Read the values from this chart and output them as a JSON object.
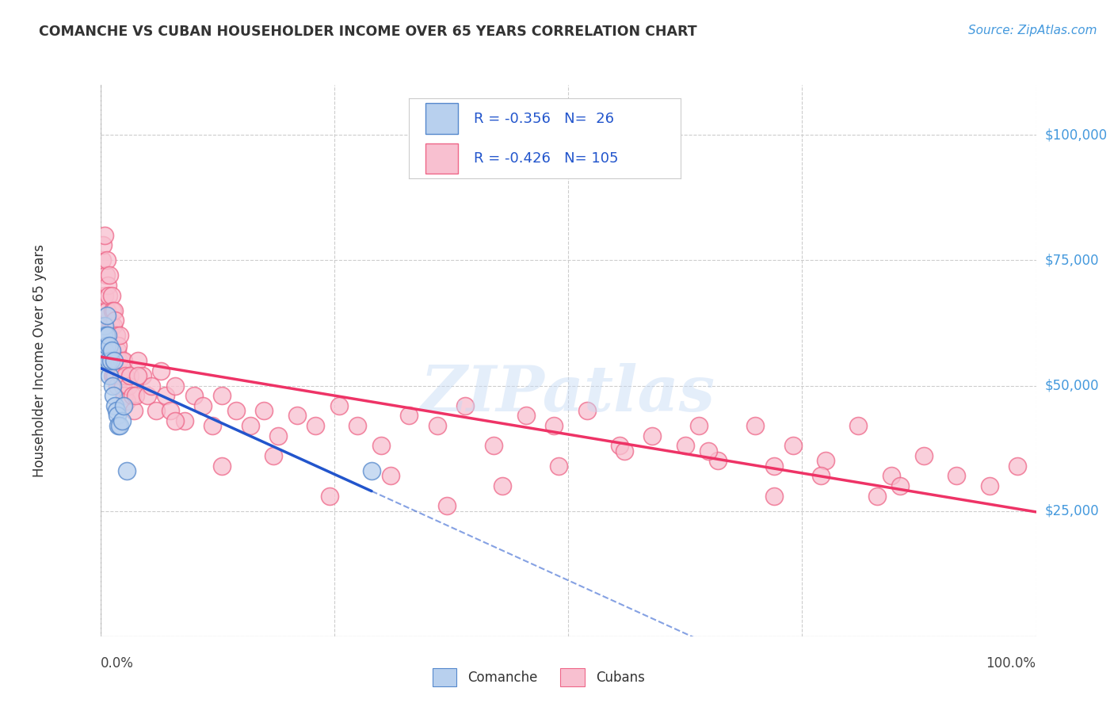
{
  "title": "COMANCHE VS CUBAN HOUSEHOLDER INCOME OVER 65 YEARS CORRELATION CHART",
  "source": "Source: ZipAtlas.com",
  "ylabel": "Householder Income Over 65 years",
  "xlim": [
    0.0,
    1.0
  ],
  "ylim": [
    0,
    110000
  ],
  "yticks": [
    0,
    25000,
    50000,
    75000,
    100000
  ],
  "background_color": "#ffffff",
  "grid_color": "#c8c8c8",
  "title_color": "#333333",
  "source_color": "#4499dd",
  "comanche_face_color": "#b8d0ee",
  "comanche_edge_color": "#5588cc",
  "comanche_line_color": "#2255cc",
  "cuban_face_color": "#f8c0d0",
  "cuban_edge_color": "#ee6688",
  "cuban_line_color": "#ee3366",
  "legend_text_color": "#2255cc",
  "R_comanche": -0.356,
  "N_comanche": 26,
  "R_cuban": -0.426,
  "N_cuban": 105,
  "comanche_x": [
    0.002,
    0.003,
    0.004,
    0.005,
    0.005,
    0.006,
    0.007,
    0.007,
    0.008,
    0.009,
    0.01,
    0.01,
    0.011,
    0.012,
    0.013,
    0.014,
    0.015,
    0.016,
    0.017,
    0.018,
    0.019,
    0.021,
    0.023,
    0.025,
    0.028,
    0.29
  ],
  "comanche_y": [
    56000,
    60000,
    60000,
    62000,
    57000,
    60000,
    64000,
    58000,
    60000,
    55000,
    58000,
    52000,
    55000,
    57000,
    50000,
    48000,
    55000,
    46000,
    45000,
    44000,
    42000,
    42000,
    43000,
    46000,
    33000,
    33000
  ],
  "cuban_x": [
    0.002,
    0.003,
    0.004,
    0.005,
    0.005,
    0.006,
    0.006,
    0.007,
    0.007,
    0.008,
    0.008,
    0.009,
    0.009,
    0.01,
    0.01,
    0.011,
    0.011,
    0.012,
    0.012,
    0.013,
    0.013,
    0.014,
    0.014,
    0.015,
    0.015,
    0.016,
    0.016,
    0.017,
    0.018,
    0.018,
    0.019,
    0.02,
    0.021,
    0.022,
    0.023,
    0.024,
    0.025,
    0.026,
    0.027,
    0.028,
    0.03,
    0.032,
    0.034,
    0.036,
    0.038,
    0.04,
    0.045,
    0.05,
    0.055,
    0.06,
    0.065,
    0.07,
    0.075,
    0.08,
    0.09,
    0.1,
    0.11,
    0.12,
    0.13,
    0.145,
    0.16,
    0.175,
    0.19,
    0.21,
    0.23,
    0.255,
    0.275,
    0.3,
    0.33,
    0.36,
    0.39,
    0.42,
    0.455,
    0.485,
    0.52,
    0.555,
    0.59,
    0.625,
    0.66,
    0.7,
    0.74,
    0.775,
    0.81,
    0.845,
    0.88,
    0.915,
    0.95,
    0.98,
    0.65,
    0.72,
    0.77,
    0.83,
    0.855,
    0.72,
    0.64,
    0.56,
    0.49,
    0.43,
    0.37,
    0.31,
    0.245,
    0.185,
    0.13,
    0.08,
    0.04
  ],
  "cuban_y": [
    75000,
    78000,
    65000,
    80000,
    68000,
    72000,
    62000,
    75000,
    65000,
    70000,
    60000,
    68000,
    57000,
    72000,
    58000,
    62000,
    55000,
    68000,
    57000,
    65000,
    52000,
    62000,
    52000,
    65000,
    55000,
    63000,
    52000,
    60000,
    57000,
    50000,
    58000,
    55000,
    60000,
    52000,
    55000,
    50000,
    55000,
    48000,
    52000,
    47000,
    50000,
    52000,
    48000,
    45000,
    48000,
    55000,
    52000,
    48000,
    50000,
    45000,
    53000,
    48000,
    45000,
    50000,
    43000,
    48000,
    46000,
    42000,
    48000,
    45000,
    42000,
    45000,
    40000,
    44000,
    42000,
    46000,
    42000,
    38000,
    44000,
    42000,
    46000,
    38000,
    44000,
    42000,
    45000,
    38000,
    40000,
    38000,
    35000,
    42000,
    38000,
    35000,
    42000,
    32000,
    36000,
    32000,
    30000,
    34000,
    37000,
    28000,
    32000,
    28000,
    30000,
    34000,
    42000,
    37000,
    34000,
    30000,
    26000,
    32000,
    28000,
    36000,
    34000,
    43000,
    52000
  ]
}
